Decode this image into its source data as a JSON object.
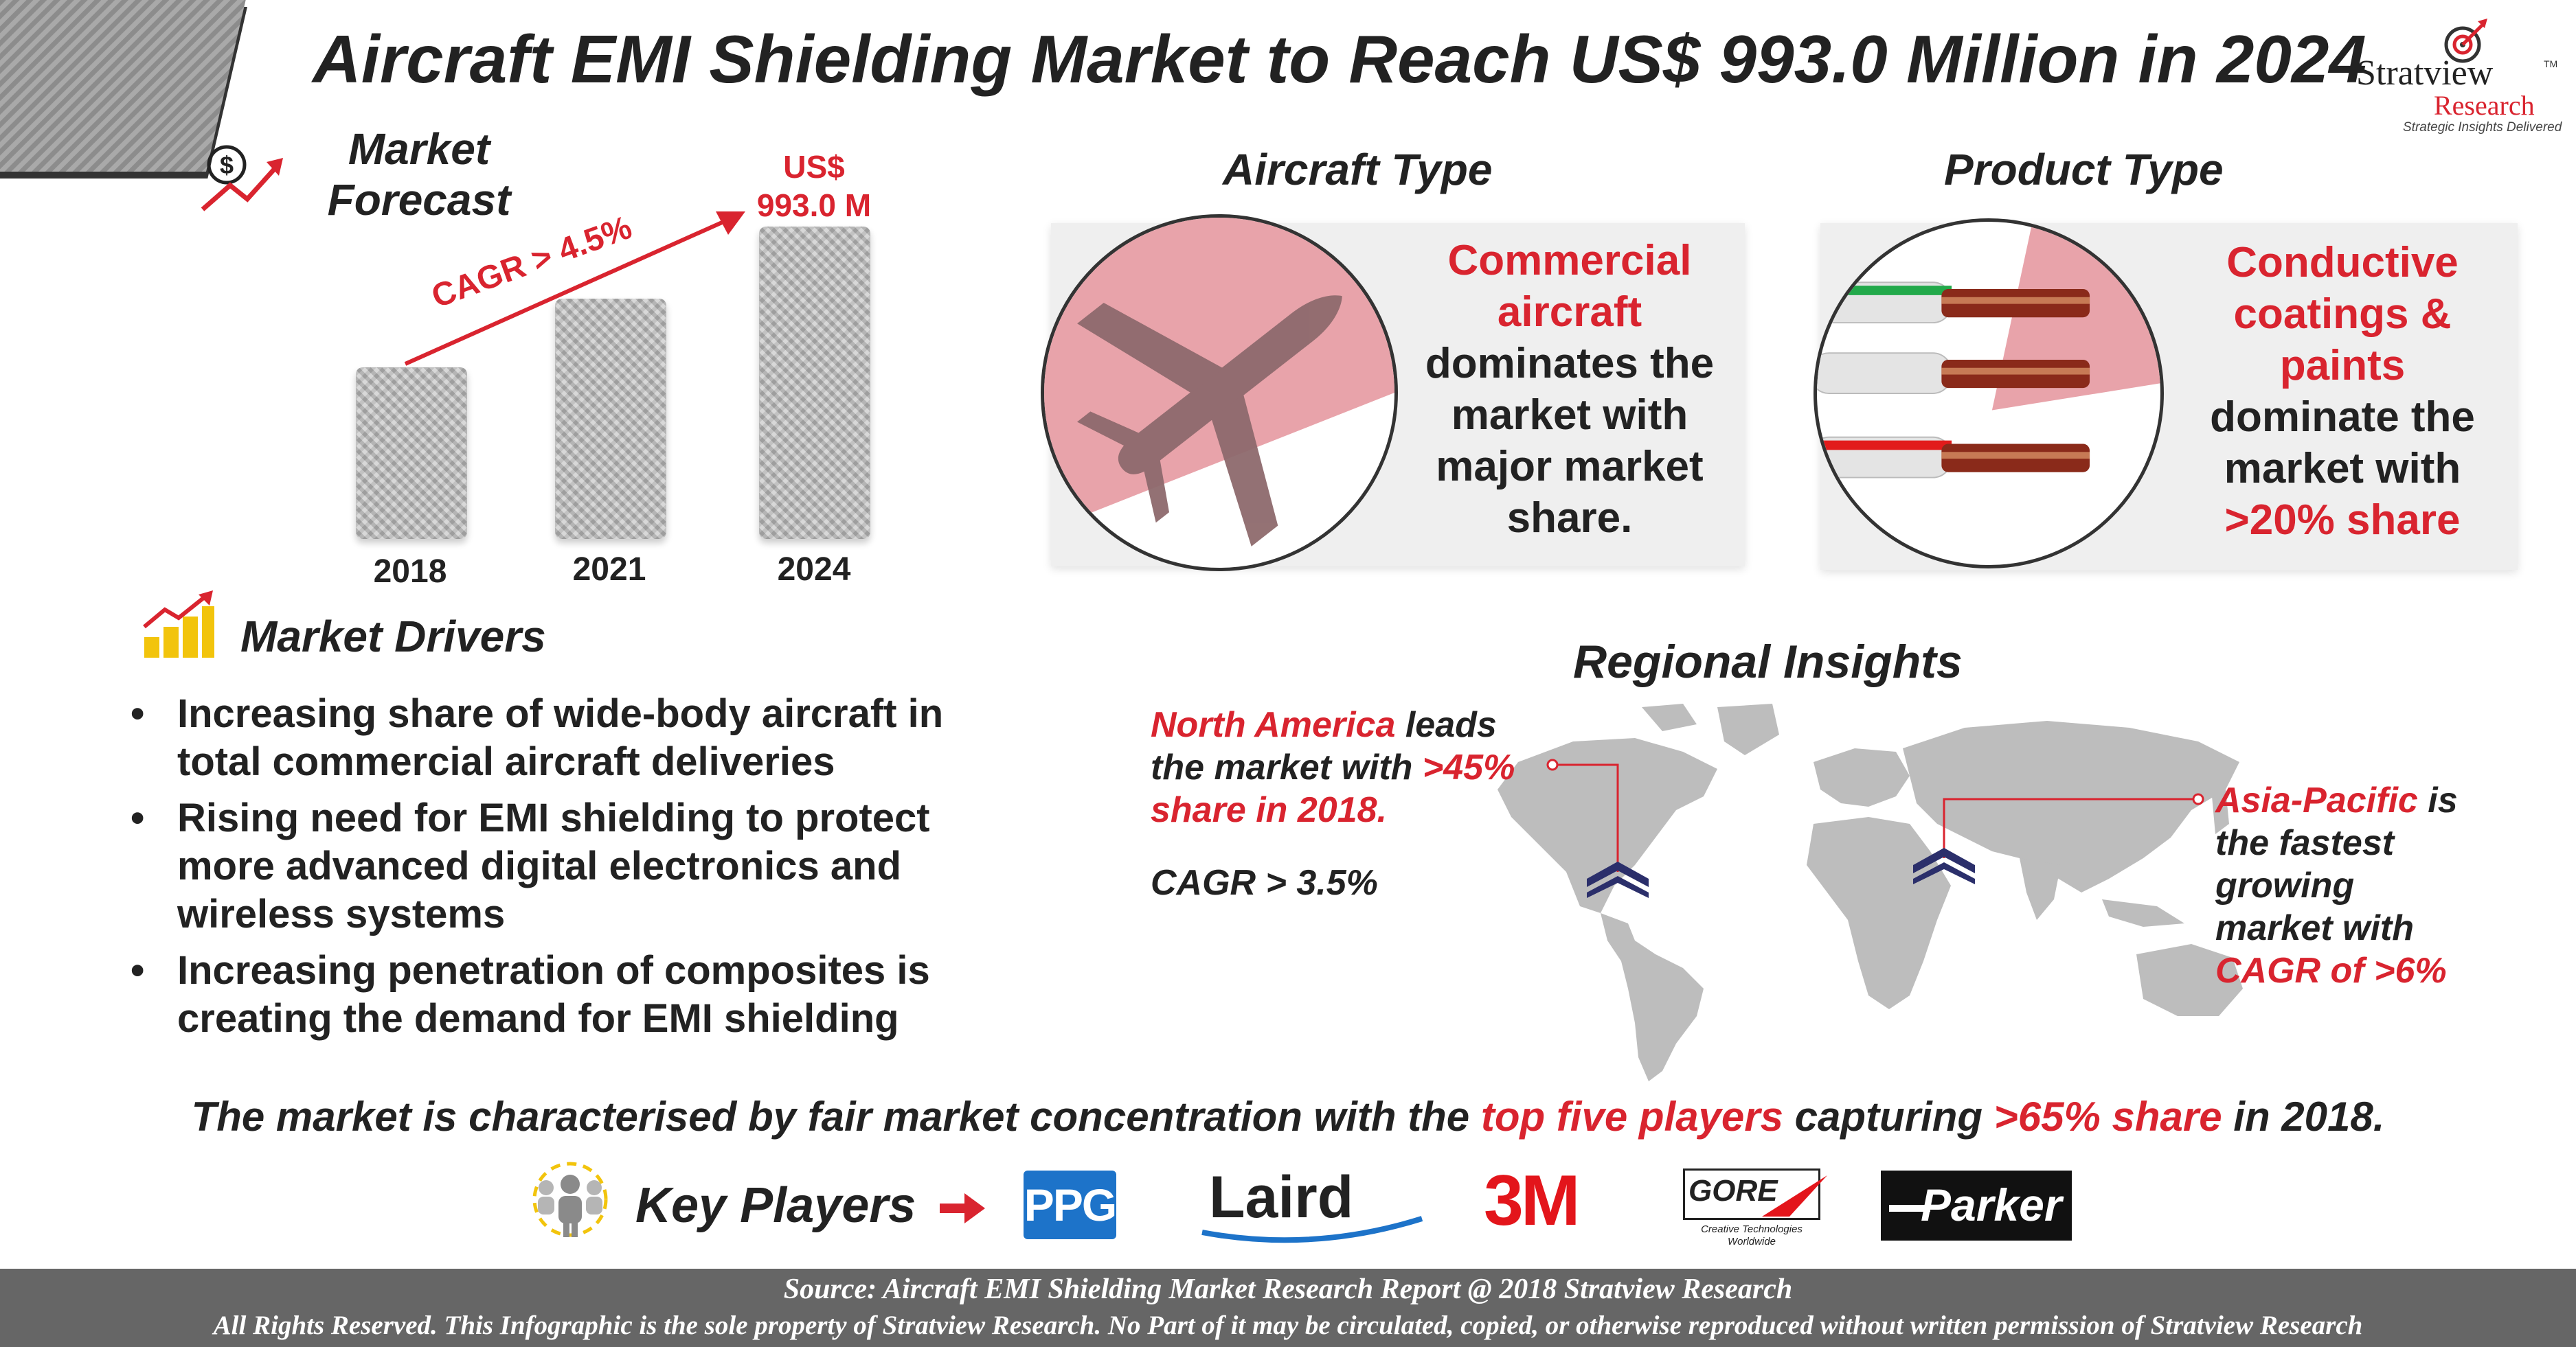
{
  "title": "Aircraft EMI Shielding Market to Reach US$ 993.0 Million in 2024",
  "logo": {
    "name": "Stratview",
    "research": "Research",
    "tagline": "Strategic Insights Delivered",
    "tm": "TM"
  },
  "forecast": {
    "heading_line1": "Market",
    "heading_line2": "Forecast",
    "cagr_label": "CAGR > 4.5%",
    "value_line1": "US$",
    "value_line2": "993.0 M",
    "bars": [
      {
        "year": "2018"
      },
      {
        "year": "2021"
      },
      {
        "year": "2024"
      }
    ]
  },
  "drivers": {
    "heading": "Market Drivers",
    "items": [
      "Increasing share of wide-body aircraft in total commercial aircraft deliveries",
      "Rising need for EMI shielding to protect more advanced digital electronics and wireless systems",
      "Increasing penetration of composites is creating the demand for EMI shielding"
    ]
  },
  "aircraft_type": {
    "heading": "Aircraft Type",
    "highlight_line1": "Commercial",
    "highlight_line2": "aircraft",
    "text_line1": "dominates the",
    "text_line2": "market with",
    "text_line3": "major market",
    "text_line4": "share."
  },
  "product_type": {
    "heading": "Product Type",
    "highlight_line1": "Conductive",
    "highlight_line2": "coatings &",
    "highlight_line3": "paints",
    "text_line1": "dominate the",
    "text_line2": "market with",
    "highlight_share": ">20% share"
  },
  "regional": {
    "heading": "Regional Insights",
    "na_region": "North America",
    "na_text1": " leads",
    "na_text2": "the market with ",
    "na_share": ">45%",
    "na_text3": "share in 2018.",
    "na_cagr": "CAGR > 3.5%",
    "ap_region": "Asia-Pacific",
    "ap_text1": " is",
    "ap_text2": "the fastest",
    "ap_text3": "growing",
    "ap_text4": "market with",
    "ap_cagr": "CAGR of >6%"
  },
  "summary": {
    "part1": "The market is characterised by fair market concentration with the ",
    "highlight1": "top five players",
    "part2": " capturing ",
    "highlight2": ">65% share",
    "part3": " in 2018."
  },
  "key_players": {
    "heading": "Key Players",
    "logos": [
      "PPG",
      "Laird",
      "3M",
      "GORE",
      "Parker"
    ],
    "gore_tagline1": "Creative Technologies",
    "gore_tagline2": "Worldwide"
  },
  "footer": {
    "source": "Source: Aircraft EMI Shielding Market Research Report @ 2018 Stratview Research",
    "rights": "All Rights Reserved. This Infographic is the sole property of Stratview Research. No Part of it may be circulated, copied, or otherwise reproduced without written permission of Stratview Research"
  },
  "colors": {
    "accent_red": "#d9242f",
    "panel_gray": "#efefef",
    "pink_wedge": "#e8a3aa",
    "footer_gray": "#666666",
    "map_gray": "#bdbdbd",
    "marker_navy": "#2b2f6b"
  }
}
